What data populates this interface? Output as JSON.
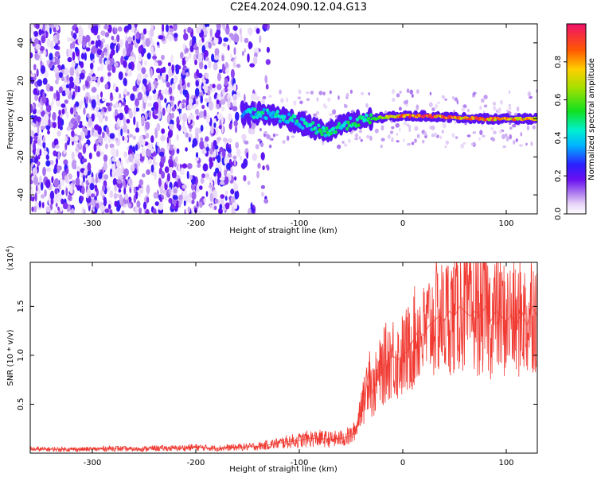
{
  "title": "C2E4.2024.090.12.04.G13",
  "chart_data": [
    {
      "type": "heatmap",
      "xlabel": "Height of straight line (km)",
      "ylabel": "Frequency (Hz)",
      "xlim": [
        -360,
        130
      ],
      "ylim": [
        -50,
        50
      ],
      "xticks": [
        -300,
        -200,
        -100,
        0,
        100
      ],
      "xtick_labels": [
        "-300",
        "-200",
        "-100",
        "0",
        "100"
      ],
      "yticks": [
        -40,
        -20,
        0,
        20,
        40
      ],
      "ytick_labels": [
        "-40",
        "-20",
        "0",
        "20",
        "40"
      ],
      "colorbar": {
        "label": "Normalized spectral amplitude",
        "range": [
          0,
          1
        ],
        "ticks": [
          0.0,
          0.2,
          0.4,
          0.6,
          0.8
        ],
        "tick_labels": [
          "0.0",
          "0.2",
          "0.4",
          "0.6",
          "0.8"
        ]
      },
      "ridge": [
        {
          "x": -155,
          "f": 3,
          "amp": 0.35
        },
        {
          "x": -140,
          "f": 3,
          "amp": 0.45
        },
        {
          "x": -125,
          "f": 2,
          "amp": 0.45
        },
        {
          "x": -110,
          "f": 0,
          "amp": 0.45
        },
        {
          "x": -95,
          "f": -3,
          "amp": 0.45
        },
        {
          "x": -80,
          "f": -6,
          "amp": 0.5
        },
        {
          "x": -70,
          "f": -7,
          "amp": 0.5
        },
        {
          "x": -60,
          "f": -4,
          "amp": 0.5
        },
        {
          "x": -50,
          "f": -2,
          "amp": 0.5
        },
        {
          "x": -40,
          "f": -1,
          "amp": 0.5
        },
        {
          "x": -30,
          "f": 0,
          "amp": 0.6
        },
        {
          "x": -15,
          "f": 1,
          "amp": 0.75
        },
        {
          "x": 0,
          "f": 1.5,
          "amp": 0.9
        },
        {
          "x": 20,
          "f": 1.5,
          "amp": 0.95
        },
        {
          "x": 40,
          "f": 1,
          "amp": 0.9
        },
        {
          "x": 60,
          "f": 0.5,
          "amp": 0.85
        },
        {
          "x": 80,
          "f": 0,
          "amp": 0.9
        },
        {
          "x": 100,
          "f": 0,
          "amp": 0.85
        },
        {
          "x": 120,
          "f": 0,
          "amp": 0.8
        },
        {
          "x": 130,
          "f": 0,
          "amp": 0.8
        }
      ]
    },
    {
      "type": "line",
      "xlabel": "Height of straight line (km)",
      "ylabel": "SNR (10 * v/v)",
      "y_multiplier_label": "(x10",
      "y_multiplier_exp": "4",
      "y_multiplier_close": ")",
      "xlim": [
        -360,
        130
      ],
      "ylim": [
        0,
        1.95
      ],
      "xticks": [
        -300,
        -200,
        -100,
        0,
        100
      ],
      "xtick_labels": [
        "-300",
        "-200",
        "-100",
        "0",
        "100"
      ],
      "yticks": [
        0.5,
        1.0,
        1.5
      ],
      "ytick_labels": [
        "0.5",
        "1.0",
        "1.5"
      ],
      "series": [
        {
          "color": "#f03a32",
          "x": [
            -360,
            -340,
            -320,
            -300,
            -280,
            -260,
            -240,
            -220,
            -200,
            -180,
            -160,
            -140,
            -120,
            -110,
            -100,
            -90,
            -80,
            -70,
            -60,
            -55,
            -50,
            -45,
            -42,
            -40,
            -38,
            -35,
            -32,
            -30,
            -25,
            -20,
            -15,
            -10,
            -5,
            0,
            5,
            10,
            15,
            20,
            25,
            30,
            35,
            40,
            45,
            50,
            55,
            60,
            65,
            70,
            75,
            80,
            85,
            90,
            95,
            100,
            105,
            110,
            115,
            120,
            125,
            130
          ],
          "y": [
            0.04,
            0.04,
            0.04,
            0.04,
            0.05,
            0.04,
            0.05,
            0.05,
            0.06,
            0.05,
            0.06,
            0.07,
            0.1,
            0.12,
            0.13,
            0.15,
            0.15,
            0.14,
            0.15,
            0.16,
            0.18,
            0.25,
            0.4,
            0.55,
            0.5,
            0.7,
            0.9,
            0.6,
            0.75,
            0.85,
            0.95,
            1.0,
            0.95,
            1.0,
            1.05,
            1.15,
            1.25,
            1.2,
            1.3,
            1.35,
            1.4,
            1.35,
            1.45,
            1.4,
            1.5,
            1.45,
            1.4,
            1.45,
            1.4,
            1.5,
            1.35,
            1.45,
            1.4,
            1.35,
            1.4,
            1.3,
            1.45,
            1.3,
            1.5,
            1.4
          ]
        }
      ]
    }
  ]
}
